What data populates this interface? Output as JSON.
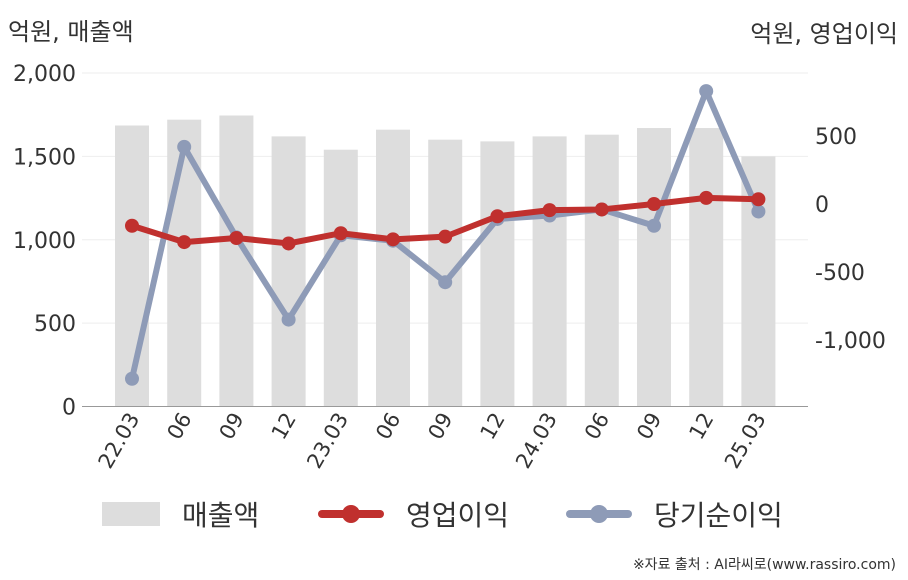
{
  "labels": {
    "unit_left": "억원, 매출액",
    "unit_right": "억원, 영업이익",
    "source": "※자료 출처 : AI라씨로(www.rassiro.com)"
  },
  "chart_data": {
    "type": "bar+line",
    "categories": [
      "22.03",
      "06",
      "09",
      "12",
      "23.03",
      "06",
      "09",
      "12",
      "24.03",
      "06",
      "09",
      "12",
      "25.03"
    ],
    "bar_series": {
      "name": "매출액",
      "axis": "left",
      "color": "#dddddd",
      "values": [
        1685,
        1720,
        1745,
        1620,
        1540,
        1660,
        1600,
        1590,
        1620,
        1630,
        1670,
        1670,
        1500
      ]
    },
    "line_series": [
      {
        "name": "영업이익",
        "axis": "right",
        "color": "#c0302e",
        "values": [
          -160,
          -280,
          -250,
          -290,
          -215,
          -260,
          -240,
          -90,
          -45,
          -40,
          0,
          45,
          35
        ]
      },
      {
        "name": "당기순이익",
        "axis": "right",
        "color": "#8e9bb7",
        "values": [
          -1285,
          420,
          -245,
          -850,
          -230,
          -270,
          -575,
          -110,
          -85,
          -40,
          -160,
          830,
          -55
        ]
      }
    ],
    "y_left": {
      "min": 0,
      "max": 2000,
      "ticks": [
        0,
        500,
        1000,
        1500,
        2000
      ],
      "tick_labels": [
        "0",
        "500",
        "1,000",
        "1,500",
        "2,000"
      ]
    },
    "y_right": {
      "ticks": [
        500,
        0,
        -500,
        -1000
      ],
      "tick_labels": [
        "500",
        "0",
        "-500",
        "-1,000"
      ]
    },
    "legend": {
      "position": "bottom",
      "entries": [
        "매출액",
        "영업이익",
        "당기순이익"
      ]
    },
    "grid": true
  }
}
